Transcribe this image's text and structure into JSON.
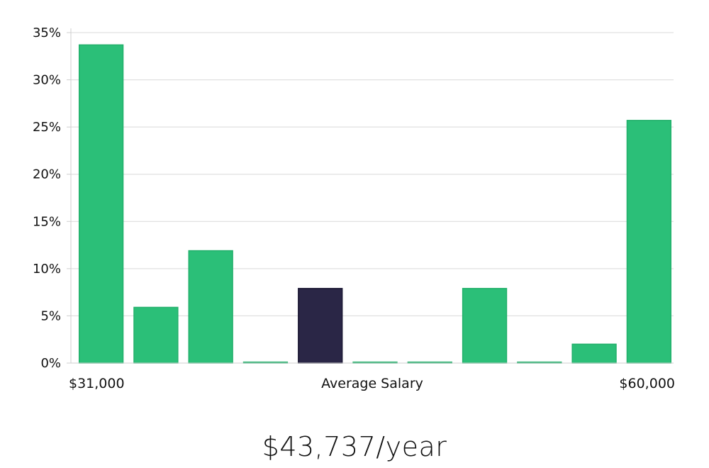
{
  "chart_data": {
    "type": "bar",
    "values": [
      33.7,
      5.9,
      11.9,
      0.1,
      7.9,
      0.1,
      0.1,
      7.9,
      0.1,
      2.0,
      25.7
    ],
    "highlight_index": 4,
    "ylim": [
      0,
      35
    ],
    "y_ticks": [
      0,
      5,
      10,
      15,
      20,
      25,
      30,
      35
    ],
    "y_tick_labels": [
      "0%",
      "5%",
      "10%",
      "15%",
      "20%",
      "25%",
      "30%",
      "35%"
    ],
    "x_min_label": "$31,000",
    "x_max_label": "$60,000",
    "xlabel": "Average Salary",
    "grid": true,
    "colors": {
      "bar": "#2bbf78",
      "bar_stroke": "#22b06b",
      "highlight": "#2a2646",
      "highlight_stroke": "#1b1833"
    }
  },
  "summary": {
    "average_salary": "$43,737/year"
  }
}
